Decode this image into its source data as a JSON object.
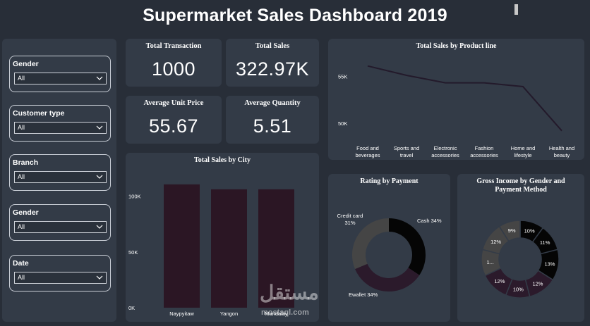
{
  "header": {
    "title": "Supermarket Sales Dashboard 2019"
  },
  "slicers": [
    {
      "label": "Gender",
      "value": "All"
    },
    {
      "label": "Customer type",
      "value": "All"
    },
    {
      "label": "Branch",
      "value": "All"
    },
    {
      "label": "Gender",
      "value": "All"
    },
    {
      "label": "Date",
      "value": "All"
    }
  ],
  "kpis": {
    "total_transaction": {
      "label": "Total Transaction",
      "value": "1000"
    },
    "total_sales": {
      "label": "Total Sales",
      "value": "322.97K"
    },
    "avg_unit_price": {
      "label": "Average Unit Price",
      "value": "55.67"
    },
    "avg_quantity": {
      "label": "Average Quantity",
      "value": "5.51"
    }
  },
  "watermark": {
    "text": "مستقل",
    "url": "mostaql.com"
  },
  "chart_data": [
    {
      "type": "line",
      "title": "Total Sales by Product line",
      "categories": [
        "Food and beverages",
        "Sports and travel",
        "Electronic accessories",
        "Fashion accessories",
        "Home and lifestyle",
        "Health and beauty"
      ],
      "category_lines": [
        [
          "Food and",
          "beverages"
        ],
        [
          "Sports and",
          "travel"
        ],
        [
          "Electronic",
          "accessories"
        ],
        [
          "Fashion",
          "accessories"
        ],
        [
          "Home and",
          "lifestyle"
        ],
        [
          "Health and",
          "beauty"
        ]
      ],
      "values": [
        56.1,
        55.1,
        54.3,
        54.3,
        53.9,
        49.2
      ],
      "yticks": [
        {
          "value": 55,
          "label": "55K"
        },
        {
          "value": 50,
          "label": "50K"
        }
      ],
      "ylim": [
        48.5,
        57.5
      ],
      "line_color": "#231a2b"
    },
    {
      "type": "bar",
      "title": "Total Sales by City",
      "categories": [
        "Naypyitaw",
        "Yangon",
        "Mandalay"
      ],
      "values": [
        110.6,
        106.2,
        106.2
      ],
      "yticks": [
        {
          "value": 0,
          "label": "0K"
        },
        {
          "value": 50,
          "label": "50K"
        },
        {
          "value": 100,
          "label": "100K"
        }
      ],
      "ylim": [
        0,
        120
      ],
      "bar_color": "#2b1624"
    },
    {
      "type": "pie",
      "title": "Rating by Payment",
      "slices": [
        {
          "label": "Cash 34%",
          "value": 34,
          "color": "#050505"
        },
        {
          "label": "Ewallet 34%",
          "value": 34,
          "color": "#2b1a2b"
        },
        {
          "label": "Credit card 31%",
          "label_lines": [
            "Credit card",
            "31%"
          ],
          "value": 31,
          "color": "#454545"
        }
      ]
    },
    {
      "type": "pie",
      "title": "Gross Income by Gender and Payment Method",
      "title_lines": [
        "Gross Income by Gender and",
        "Payment Method"
      ],
      "slices": [
        {
          "label": "10%",
          "value": 10,
          "color": "#050505"
        },
        {
          "label": "11%",
          "value": 11,
          "color": "#050505"
        },
        {
          "label": "13%",
          "value": 13,
          "color": "#050505"
        },
        {
          "label": "12%",
          "value": 12,
          "color": "#2b1a2b"
        },
        {
          "label": "10%",
          "value": 10,
          "color": "#2b1a2b"
        },
        {
          "label": "12%",
          "value": 12,
          "color": "#2b1a2b"
        },
        {
          "label": "1...",
          "value": 11,
          "color": "#454545"
        },
        {
          "label": "12%",
          "value": 12,
          "color": "#454545"
        },
        {
          "label": "9%",
          "value": 9,
          "color": "#454545"
        }
      ]
    }
  ]
}
